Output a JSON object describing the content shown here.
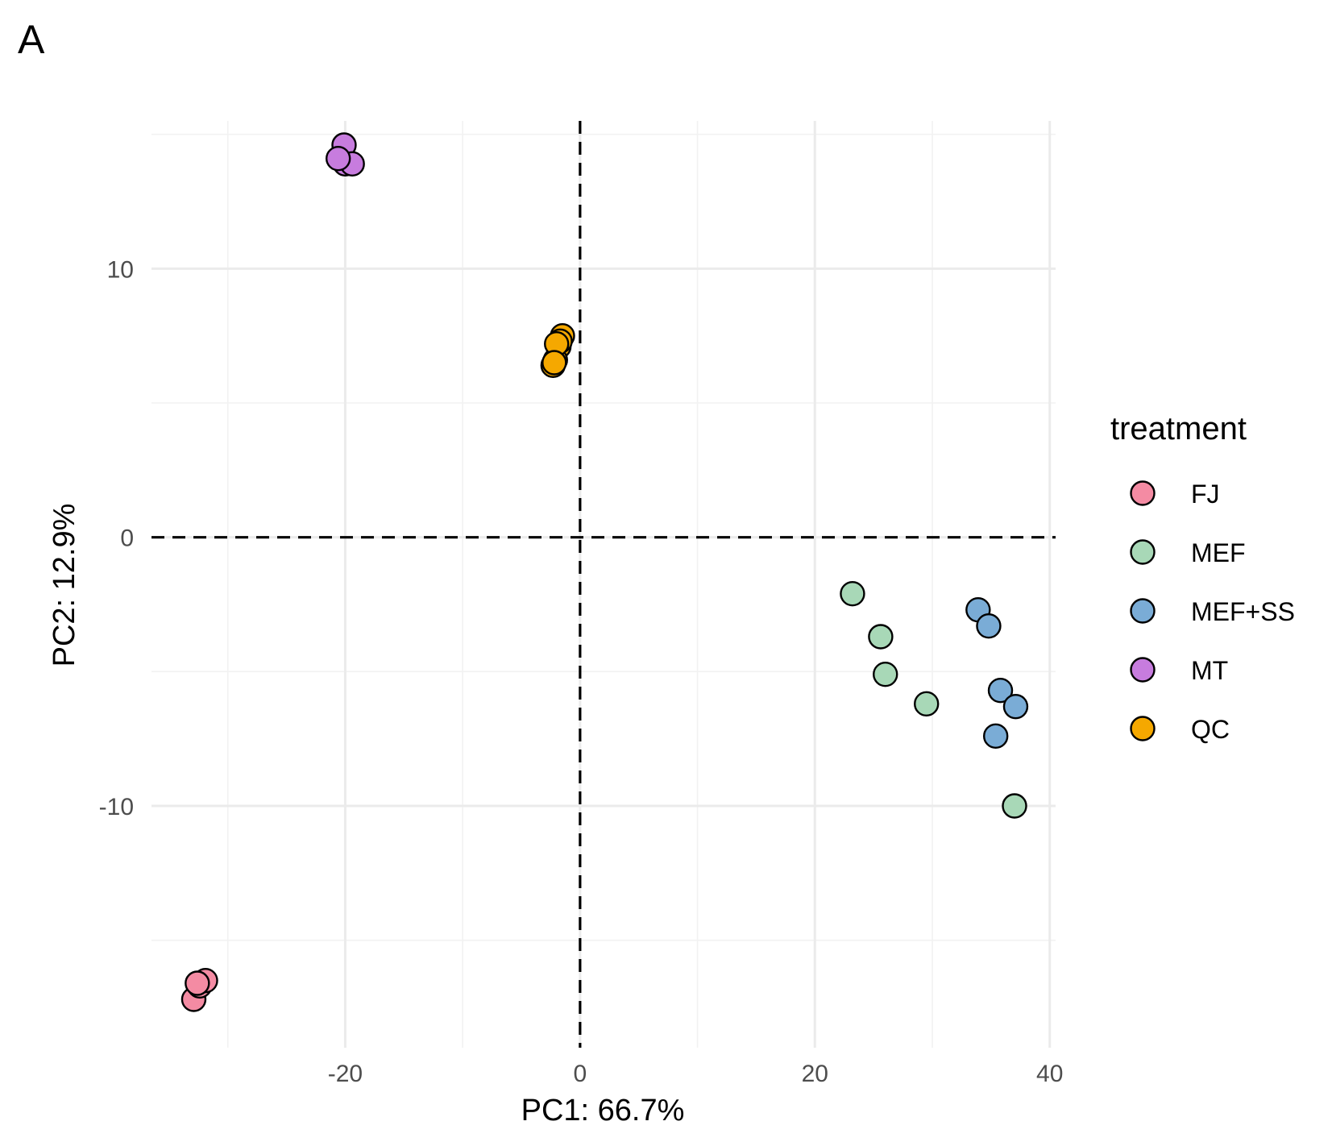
{
  "chart_data": {
    "type": "scatter",
    "panel_label": "A",
    "title": "",
    "xlabel": "PC1: 66.7%",
    "ylabel": "PC2: 12.9%",
    "xlim": [
      -36.5,
      40.5
    ],
    "ylim": [
      -19,
      15.5
    ],
    "x_ticks": [
      -20,
      0,
      20,
      40
    ],
    "y_ticks": [
      -10,
      0,
      10
    ],
    "x_tick_labels": [
      "-20",
      "0",
      "20",
      "40"
    ],
    "y_tick_labels": [
      "-10",
      "0",
      "10"
    ],
    "x_minor": [
      -30,
      -10,
      10,
      30
    ],
    "y_minor": [
      -15,
      -5,
      5,
      15
    ],
    "grid": true,
    "reference_lines": {
      "x": 0,
      "y": 0,
      "style": "dashed",
      "color": "#000000"
    },
    "legend": {
      "title": "treatment",
      "position": "right"
    },
    "series": [
      {
        "name": "FJ",
        "color": "#F48BA3",
        "points": [
          [
            -32.9,
            -17.2
          ],
          [
            -32.4,
            -16.7
          ],
          [
            -31.9,
            -16.5
          ],
          [
            -32.6,
            -16.6
          ]
        ]
      },
      {
        "name": "MEF",
        "color": "#A8D8B7",
        "points": [
          [
            23.2,
            -2.1
          ],
          [
            25.6,
            -3.7
          ],
          [
            26.0,
            -5.1
          ],
          [
            29.5,
            -6.2
          ],
          [
            37.0,
            -10.0
          ]
        ]
      },
      {
        "name": "MEF+SS",
        "color": "#7AACD6",
        "points": [
          [
            33.9,
            -2.7
          ],
          [
            34.8,
            -3.3
          ],
          [
            35.8,
            -5.7
          ],
          [
            37.1,
            -6.3
          ],
          [
            35.4,
            -7.4
          ]
        ]
      },
      {
        "name": "MT",
        "color": "#C77CDE",
        "points": [
          [
            -20.1,
            14.6
          ],
          [
            -20.0,
            13.9
          ],
          [
            -19.4,
            13.9
          ],
          [
            -20.6,
            14.1
          ]
        ]
      },
      {
        "name": "QC",
        "color": "#F5A800",
        "points": [
          [
            -1.5,
            7.5
          ],
          [
            -1.8,
            7.1
          ],
          [
            -2.3,
            6.4
          ],
          [
            -2.1,
            6.6
          ],
          [
            -1.7,
            7.3
          ],
          [
            -2.0,
            7.2
          ],
          [
            -2.2,
            6.5
          ]
        ]
      }
    ]
  }
}
